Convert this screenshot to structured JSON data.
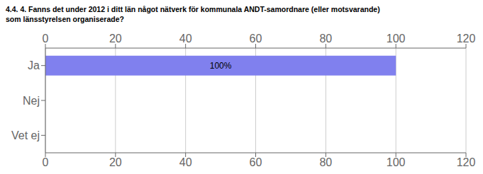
{
  "chart_data": {
    "type": "bar",
    "orientation": "horizontal",
    "title": "4.4. 4. Fanns det under 2012 i ditt län något nätverk för kommunala ANDT-samordnare (eller motsvarande)\nsom länsstyrelsen organiserade?",
    "categories": [
      "Ja",
      "Nej",
      "Vet ej"
    ],
    "values": [
      100,
      0,
      0
    ],
    "data_labels": true,
    "value_labels": [
      "100%",
      null,
      null
    ],
    "color": "#8080ee",
    "xlim": [
      0,
      120
    ],
    "xticks": [
      0,
      20,
      40,
      60,
      80,
      100,
      120
    ],
    "grid": true
  }
}
